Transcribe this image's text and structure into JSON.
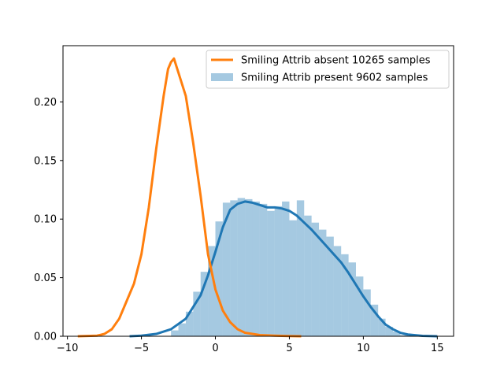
{
  "chart_data": {
    "type": "area",
    "xlim": [
      -10.3,
      16.1
    ],
    "ylim": [
      0,
      0.248
    ],
    "x_ticks": [
      -10,
      -5,
      0,
      5,
      10,
      15
    ],
    "x_tick_labels": [
      "−10",
      "−5",
      "0",
      "5",
      "10",
      "15"
    ],
    "y_ticks": [
      0,
      0.05,
      0.1,
      0.15,
      0.2
    ],
    "y_tick_labels": [
      "0.00",
      "0.05",
      "0.10",
      "0.15",
      "0.20"
    ],
    "legend_position": "top-right",
    "colors": {
      "absent_line": "#ff7f0e",
      "present_line": "#1f77b4",
      "present_hist": "#1f77b4"
    },
    "series": [
      {
        "name": "Smiling Attrib absent 10265 samples",
        "kind": "kde-line",
        "x": [
          -9.3,
          -8.0,
          -7.5,
          -7.0,
          -6.5,
          -6.0,
          -5.5,
          -5.0,
          -4.5,
          -4.0,
          -3.5,
          -3.2,
          -3.0,
          -2.8,
          -2.5,
          -2.0,
          -1.5,
          -1.0,
          -0.5,
          0.0,
          0.5,
          1.0,
          1.5,
          2.0,
          2.5,
          3.0,
          4.0,
          5.0,
          5.8
        ],
        "y": [
          0.0,
          0.0005,
          0.002,
          0.006,
          0.015,
          0.03,
          0.045,
          0.07,
          0.11,
          0.16,
          0.205,
          0.228,
          0.234,
          0.237,
          0.225,
          0.205,
          0.165,
          0.12,
          0.07,
          0.04,
          0.022,
          0.012,
          0.006,
          0.003,
          0.002,
          0.001,
          0.0005,
          0.0002,
          0.0
        ]
      },
      {
        "name": "Smiling Attrib present 9602 samples",
        "kind": "kde-line",
        "x": [
          -5.8,
          -5.0,
          -4.0,
          -3.0,
          -2.0,
          -1.0,
          -0.5,
          0.0,
          0.5,
          1.0,
          1.5,
          2.0,
          2.5,
          3.0,
          3.5,
          4.0,
          4.5,
          5.0,
          5.5,
          6.0,
          6.5,
          7.0,
          7.5,
          8.0,
          8.5,
          9.0,
          9.5,
          10.0,
          10.5,
          11.0,
          11.5,
          12.0,
          12.5,
          13.0,
          14.0,
          15.0
        ],
        "y": [
          0.0,
          0.0005,
          0.002,
          0.006,
          0.015,
          0.035,
          0.052,
          0.072,
          0.093,
          0.108,
          0.113,
          0.115,
          0.114,
          0.112,
          0.11,
          0.11,
          0.109,
          0.107,
          0.103,
          0.097,
          0.091,
          0.084,
          0.077,
          0.07,
          0.063,
          0.054,
          0.044,
          0.034,
          0.025,
          0.017,
          0.01,
          0.006,
          0.003,
          0.0015,
          0.0003,
          0.0
        ]
      }
    ],
    "histogram": {
      "name": "Smiling Attrib present 9602 samples",
      "bin_edges": [
        -3.0,
        -2.5,
        -2.0,
        -1.5,
        -1.0,
        -0.5,
        0.0,
        0.5,
        1.0,
        1.5,
        2.0,
        2.5,
        3.0,
        3.5,
        4.0,
        4.5,
        5.0,
        5.5,
        6.0,
        6.5,
        7.0,
        7.5,
        8.0,
        8.5,
        9.0,
        9.5,
        10.0,
        10.5,
        11.0,
        11.5,
        12.0,
        12.5,
        13.0
      ],
      "values": [
        0.005,
        0.011,
        0.021,
        0.038,
        0.055,
        0.077,
        0.098,
        0.114,
        0.116,
        0.118,
        0.117,
        0.115,
        0.113,
        0.107,
        0.111,
        0.115,
        0.099,
        0.116,
        0.103,
        0.097,
        0.091,
        0.085,
        0.077,
        0.07,
        0.063,
        0.051,
        0.04,
        0.027,
        0.015,
        0.008,
        0.004,
        0.001
      ]
    }
  }
}
